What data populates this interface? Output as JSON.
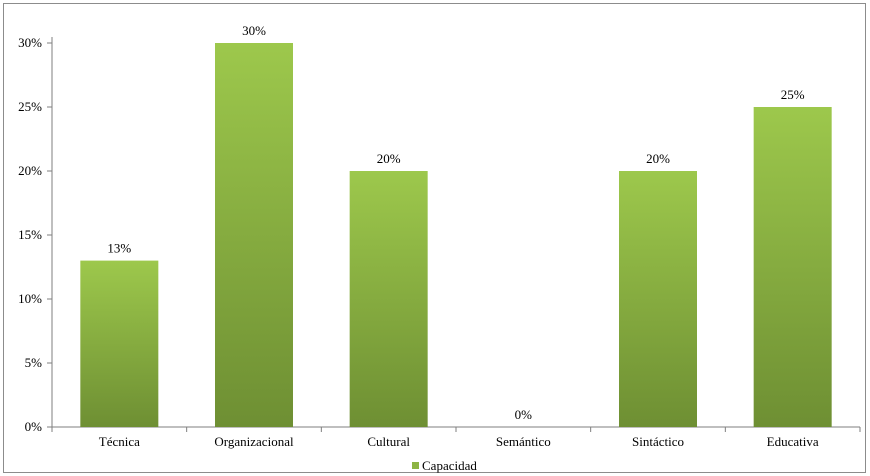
{
  "chart_data": {
    "type": "bar",
    "categories": [
      "Técnica",
      "Organizacional",
      "Cultural",
      "Semántico",
      "Sintáctico",
      "Educativa"
    ],
    "series": [
      {
        "name": "Capacidad",
        "values": [
          13,
          30,
          20,
          0,
          20,
          25
        ],
        "color": "#8db443"
      }
    ],
    "data_labels": [
      "13%",
      "30%",
      "20%",
      "0%",
      "20%",
      "25%"
    ],
    "y_ticks": [
      "0%",
      "5%",
      "10%",
      "15%",
      "20%",
      "25%",
      "30%"
    ],
    "ylim": [
      0,
      30
    ],
    "grid": false,
    "legend_position": "bottom",
    "title": "",
    "xlabel": "",
    "ylabel": ""
  },
  "colors": {
    "bar_top": "#9dc84c",
    "bar_bottom": "#6e8f33",
    "legend_swatch": "#8db443",
    "axis": "#7f7f7f"
  }
}
